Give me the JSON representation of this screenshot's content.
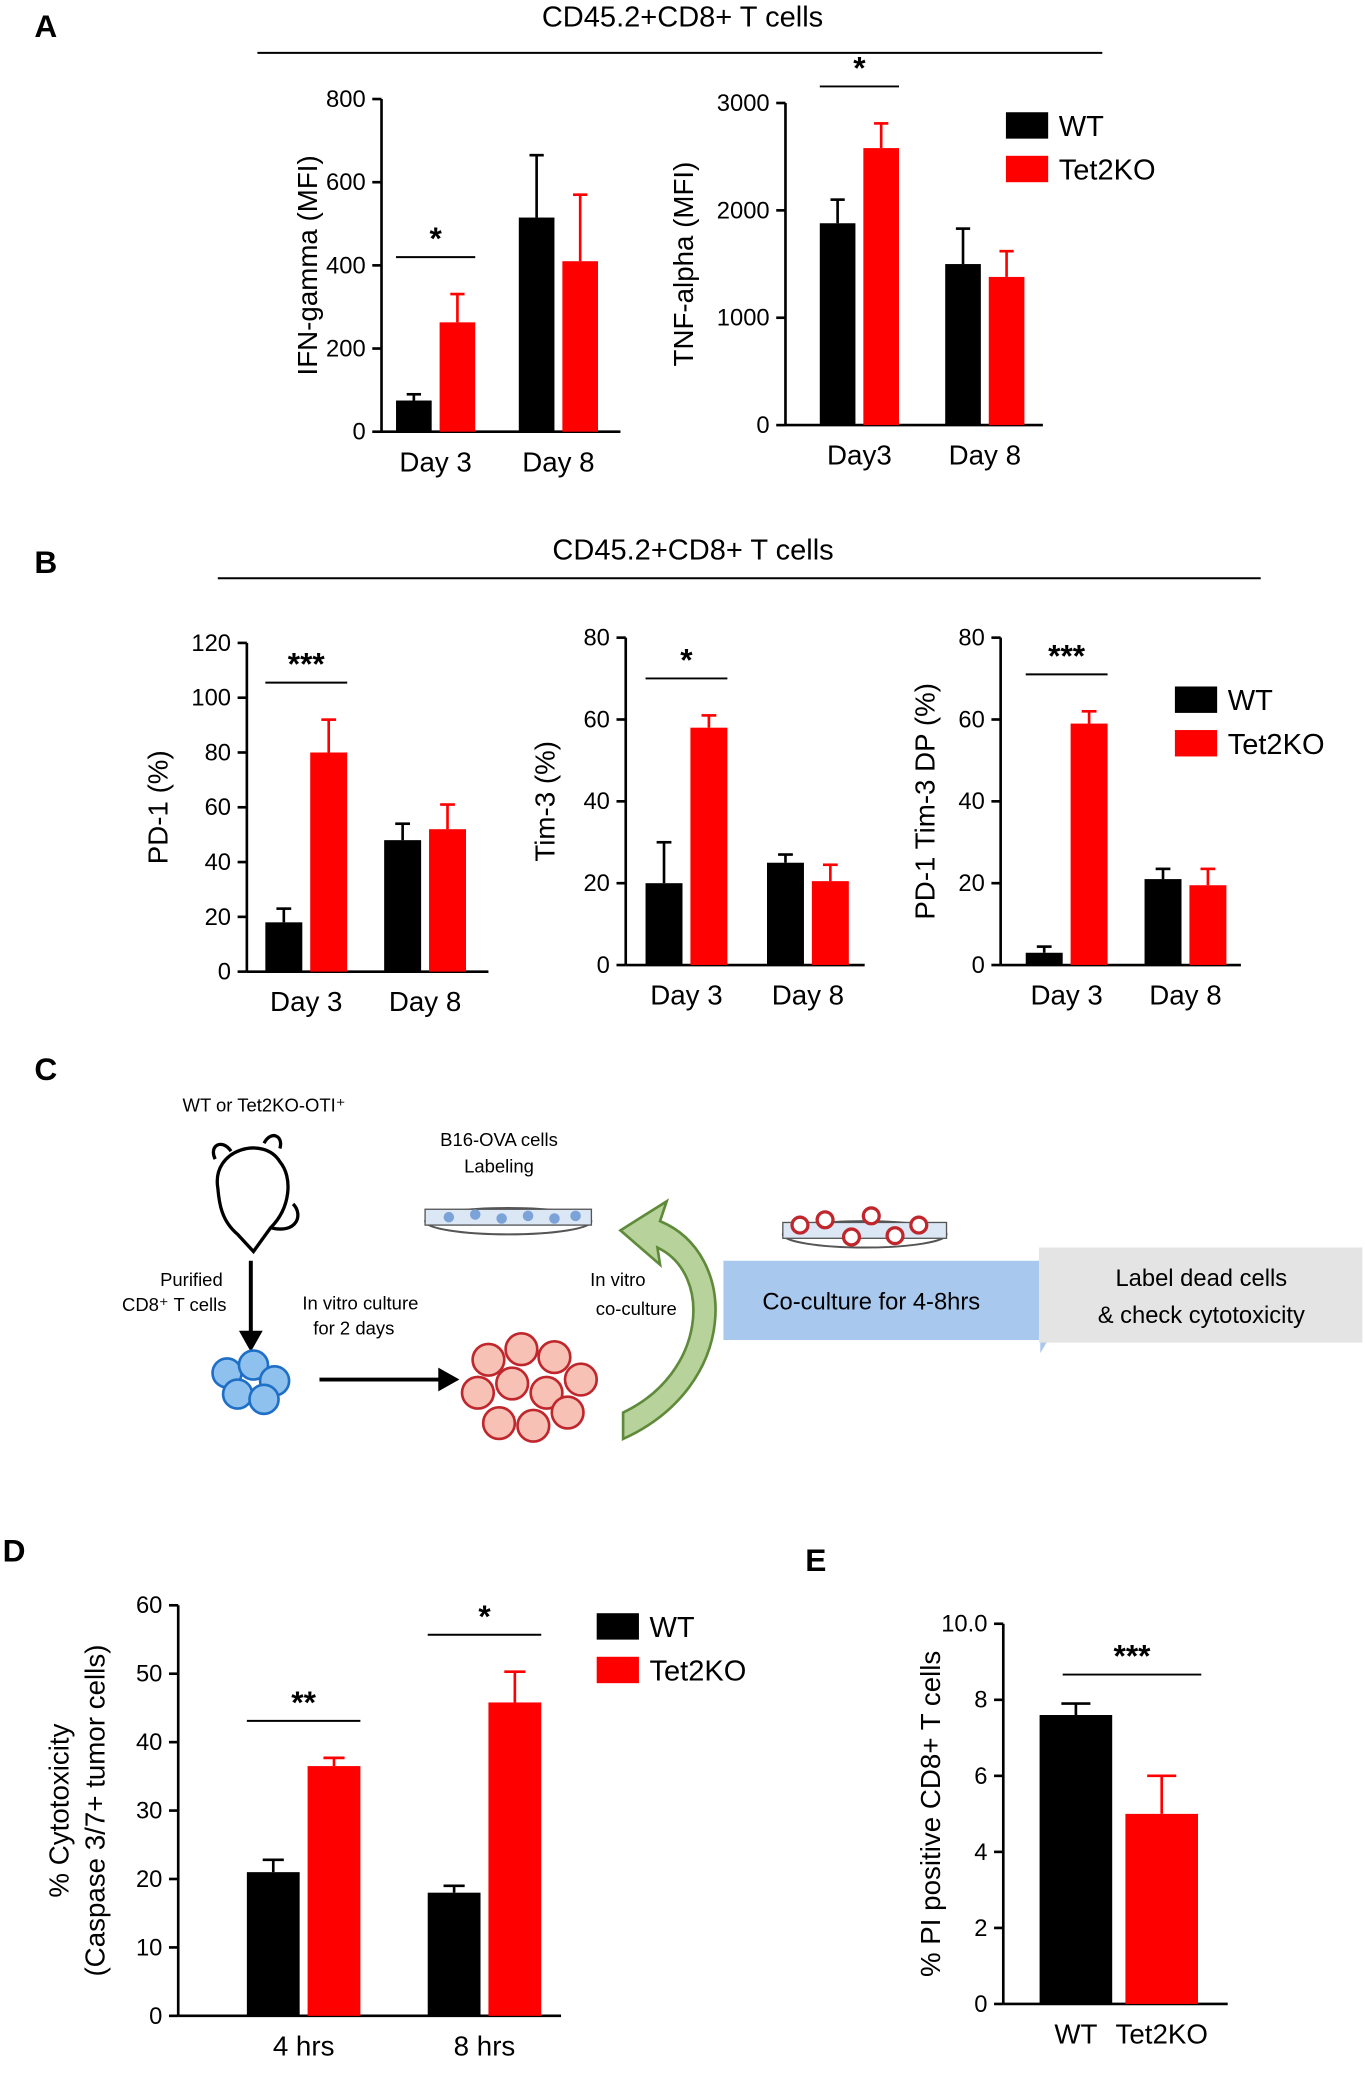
{
  "figure": {
    "panel_labels": [
      "A",
      "B",
      "C",
      "D",
      "E"
    ],
    "group_titles": [
      "CD45.2+CD8+ T cells",
      "CD45.2+CD8+ T cells"
    ],
    "diagram": {
      "mouse_label": "WT or Tet2KO-OTI⁺",
      "purified": [
        "Purified",
        "CD8⁺ T cells"
      ],
      "culture": [
        "In vitro culture",
        "for 2 days"
      ],
      "target": [
        "B16-OVA cells",
        "Labeling"
      ],
      "coculture": [
        "In vitro",
        "co-culture"
      ],
      "arrow": "Co-culture  for 4-8hrs",
      "result": [
        "Label dead cells",
        "& check cytotoxicity"
      ]
    }
  },
  "chart_data": [
    {
      "type": "bar",
      "ylabel": "IFN-gamma (MFI)",
      "categories": [
        "Day 3",
        "Day 8"
      ],
      "series": [
        {
          "color": "#000000",
          "values": [
            75,
            515
          ],
          "errors": [
            15,
            150
          ]
        },
        {
          "color": "#ff0000",
          "values": [
            263,
            410
          ],
          "errors": [
            68,
            160
          ]
        }
      ],
      "significance": [
        "*",
        null
      ],
      "ylim": [
        0,
        800
      ],
      "yticks": [
        0,
        200,
        400,
        600,
        800
      ]
    },
    {
      "type": "bar",
      "ylabel": "TNF-alpha (MFI)",
      "categories": [
        "Day3",
        "Day 8"
      ],
      "series": [
        {
          "name": "WT",
          "color": "#000000",
          "values": [
            1880,
            1500
          ],
          "errors": [
            220,
            330
          ]
        },
        {
          "name": "Tet2KO",
          "color": "#ff0000",
          "values": [
            2580,
            1380
          ],
          "errors": [
            230,
            240
          ]
        }
      ],
      "significance": [
        "*",
        null
      ],
      "ylim": [
        0,
        3000
      ],
      "yticks": [
        0,
        1000,
        2000,
        3000
      ],
      "legend": "right"
    },
    {
      "type": "bar",
      "ylabel": "PD-1 (%)",
      "categories": [
        "Day 3",
        "Day 8"
      ],
      "series": [
        {
          "color": "#000000",
          "values": [
            18,
            48
          ],
          "errors": [
            5,
            6
          ]
        },
        {
          "color": "#ff0000",
          "values": [
            80,
            52
          ],
          "errors": [
            12,
            9
          ]
        }
      ],
      "significance": [
        "***",
        null
      ],
      "ylim": [
        0,
        120
      ],
      "yticks": [
        0,
        20,
        40,
        60,
        80,
        100,
        120
      ]
    },
    {
      "type": "bar",
      "ylabel": "Tim-3 (%)",
      "categories": [
        "Day 3",
        "Day 8"
      ],
      "series": [
        {
          "color": "#000000",
          "values": [
            20,
            25
          ],
          "errors": [
            10,
            2
          ]
        },
        {
          "color": "#ff0000",
          "values": [
            58,
            20.5
          ],
          "errors": [
            3,
            4
          ]
        }
      ],
      "significance": [
        "*",
        null
      ],
      "ylim": [
        0,
        80
      ],
      "yticks": [
        0,
        20,
        40,
        60,
        80
      ]
    },
    {
      "type": "bar",
      "ylabel": "PD-1 Tim-3 DP (%)",
      "categories": [
        "Day 3",
        "Day 8"
      ],
      "series": [
        {
          "name": "WT",
          "color": "#000000",
          "values": [
            3,
            21
          ],
          "errors": [
            1.5,
            2.5
          ]
        },
        {
          "name": "Tet2KO",
          "color": "#ff0000",
          "values": [
            59,
            19.5
          ],
          "errors": [
            3,
            4
          ]
        }
      ],
      "significance": [
        "***",
        null
      ],
      "ylim": [
        0,
        80
      ],
      "yticks": [
        0,
        20,
        40,
        60,
        80
      ],
      "legend": "right"
    },
    {
      "type": "bar",
      "ylabel": [
        "% Cytotoxicity",
        "(Caspase 3/7+ tumor cells)"
      ],
      "categories": [
        "4 hrs",
        "8 hrs"
      ],
      "series": [
        {
          "name": "WT",
          "color": "#000000",
          "values": [
            21,
            18
          ],
          "errors": [
            1.8,
            1
          ]
        },
        {
          "name": "Tet2KO",
          "color": "#ff0000",
          "values": [
            36.5,
            45.8
          ],
          "errors": [
            1.2,
            4.5
          ]
        }
      ],
      "significance": [
        "**",
        "*"
      ],
      "ylim": [
        0,
        60
      ],
      "yticks": [
        0,
        10,
        20,
        30,
        40,
        50,
        60
      ],
      "legend": "right"
    },
    {
      "type": "bar",
      "ylabel": "% PI positive CD8+ T cells",
      "categories": [
        "WT",
        "Tet2KO"
      ],
      "values": [
        7.6,
        5.0
      ],
      "errors": [
        0.3,
        1.0
      ],
      "colors": [
        "#000000",
        "#ff0000"
      ],
      "significance": "***",
      "ylim": [
        0,
        10
      ],
      "yticks": [
        0,
        2,
        4,
        6,
        8,
        {
          "value": 10,
          "label": "10.0"
        }
      ]
    }
  ]
}
